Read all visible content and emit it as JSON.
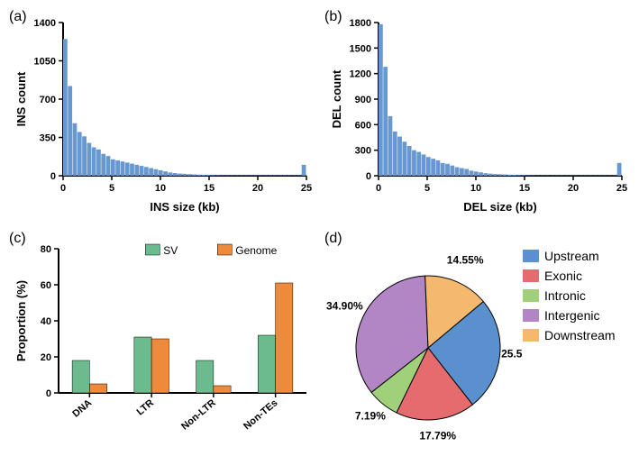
{
  "panel_a": {
    "label": "(a)",
    "type": "histogram",
    "ylabel": "INS count",
    "xlabel": "INS size (kb)",
    "yticks": [
      0,
      350,
      700,
      1050,
      1400
    ],
    "xticks": [
      0,
      5,
      10,
      15,
      20,
      25
    ],
    "bar_color": "#6799d0",
    "values": [
      1250,
      820,
      480,
      400,
      360,
      300,
      260,
      240,
      200,
      180,
      150,
      140,
      130,
      120,
      110,
      100,
      90,
      80,
      70,
      60,
      50,
      40,
      30,
      25,
      20,
      18,
      15,
      12,
      10,
      8,
      8,
      6,
      6,
      5,
      5,
      5,
      5,
      5,
      5,
      5,
      5,
      5,
      5,
      5,
      5,
      5,
      5,
      5,
      5,
      5,
      100
    ],
    "axis_fontsize": 13,
    "tick_fontsize": 11
  },
  "panel_b": {
    "label": "(b)",
    "type": "histogram",
    "ylabel": "DEL count",
    "xlabel": "DEL size (kb)",
    "yticks": [
      0,
      300,
      600,
      900,
      1200,
      1500,
      1800
    ],
    "xticks": [
      0,
      5,
      10,
      15,
      20,
      25
    ],
    "bar_color": "#6799d0",
    "values": [
      1780,
      1280,
      700,
      520,
      460,
      400,
      350,
      300,
      280,
      250,
      220,
      200,
      180,
      150,
      140,
      120,
      100,
      90,
      80,
      60,
      50,
      40,
      30,
      25,
      20,
      18,
      15,
      12,
      10,
      8,
      8,
      6,
      6,
      5,
      5,
      5,
      5,
      5,
      5,
      5,
      5,
      5,
      5,
      5,
      5,
      5,
      5,
      5,
      5,
      5,
      150
    ],
    "axis_fontsize": 13,
    "tick_fontsize": 11
  },
  "panel_c": {
    "label": "(c)",
    "type": "bar",
    "ylabel": "Proportion (%)",
    "yticks": [
      0,
      20,
      40,
      60,
      80
    ],
    "categories": [
      "DNA",
      "LTR",
      "Non-LTR",
      "Non-TEs"
    ],
    "series": [
      {
        "name": "SV",
        "color": "#6bbb8f",
        "values": [
          18,
          31,
          18,
          32
        ]
      },
      {
        "name": "Genome",
        "color": "#ee8a3b",
        "values": [
          5,
          30,
          4,
          61
        ]
      }
    ],
    "axis_fontsize": 13,
    "tick_fontsize": 11,
    "legend_fontsize": 12
  },
  "panel_d": {
    "label": "(d)",
    "type": "pie",
    "slices": [
      {
        "name": "Upstream",
        "value": 25.52,
        "color": "#5b90cf",
        "label": "25.52%"
      },
      {
        "name": "Exonic",
        "value": 17.79,
        "color": "#e56b6e",
        "label": "17.79%"
      },
      {
        "name": "Intronic",
        "value": 7.19,
        "color": "#a1d07a",
        "label": "7.19%"
      },
      {
        "name": "Intergenic",
        "value": 34.9,
        "color": "#b285c4",
        "label": "34.90%"
      },
      {
        "name": "Downstream",
        "value": 14.55,
        "color": "#f4b86e",
        "label": "14.55%"
      }
    ],
    "start_angle_deg": -40,
    "label_fontsize": 12,
    "legend_fontsize": 14
  }
}
